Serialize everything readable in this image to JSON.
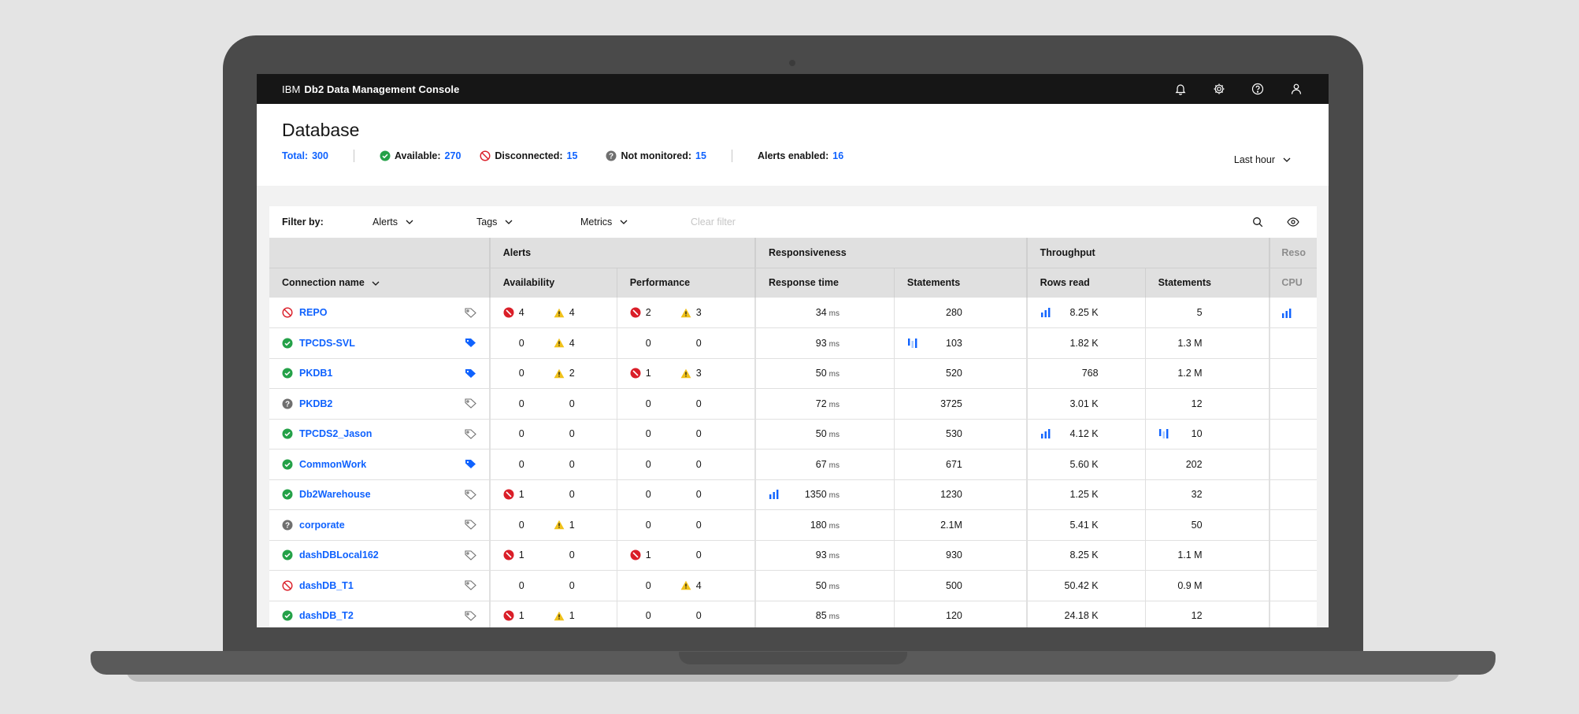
{
  "topbar": {
    "brand_prefix": "IBM",
    "brand_name": "Db2 Data Management Console",
    "icons": [
      "notification-icon",
      "settings-icon",
      "help-icon",
      "user-icon"
    ]
  },
  "header": {
    "title": "Database",
    "total_label": "Total:",
    "total": "300",
    "available_label": "Available:",
    "available": "270",
    "disconnected_label": "Disconnected:",
    "disconnected": "15",
    "not_monitored_label": "Not monitored:",
    "not_monitored": "15",
    "alerts_enabled_label": "Alerts enabled:",
    "alerts_enabled": "16",
    "time_range": "Last hour"
  },
  "filter": {
    "label": "Filter by:",
    "alerts": "Alerts",
    "tags": "Tags",
    "metrics": "Metrics",
    "clear": "Clear filter"
  },
  "table": {
    "group_headers": {
      "alerts": "Alerts",
      "responsiveness": "Responsiveness",
      "throughput": "Throughput",
      "resources": "Reso"
    },
    "columns": {
      "connection": "Connection name",
      "availability": "Availability",
      "performance": "Performance",
      "response_time": "Response time",
      "statements": "Statements",
      "rows_read": "Rows read",
      "tp_statements": "Statements",
      "cpu": "CPU"
    },
    "unit_ms": "ms",
    "colors": {
      "link": "#0f62fe",
      "critical": "#da1e28",
      "warning": "#f1c21b",
      "ok": "#24a148",
      "unknown": "#6f6f6f"
    },
    "rows": [
      {
        "status": "disconnected",
        "name": "REPO",
        "tagged": false,
        "av_crit": "4",
        "av_warn": "4",
        "pf_crit": "2",
        "pf_warn": "3",
        "resp": "34",
        "stmts": "280",
        "rows": "8.25 K",
        "tp": "5",
        "rt_spark": false,
        "st_spark": false,
        "rr_spark": true,
        "tp_spark": false,
        "cpu_spark": true,
        "avc_icon": true,
        "avw_icon": true,
        "pfc_icon": true,
        "pfw_icon": true
      },
      {
        "status": "available",
        "name": "TPCDS-SVL",
        "tagged": true,
        "av_crit": "0",
        "av_warn": "4",
        "pf_crit": "0",
        "pf_warn": "0",
        "resp": "93",
        "stmts": "103",
        "rows": "1.82 K",
        "tp": "1.3 M",
        "rt_spark": false,
        "st_spark": true,
        "rr_spark": false,
        "tp_spark": false,
        "cpu_spark": false,
        "avc_icon": false,
        "avw_icon": true,
        "pfc_icon": false,
        "pfw_icon": false
      },
      {
        "status": "available",
        "name": "PKDB1",
        "tagged": true,
        "av_crit": "0",
        "av_warn": "2",
        "pf_crit": "1",
        "pf_warn": "3",
        "resp": "50",
        "stmts": "520",
        "rows": "768",
        "tp": "1.2 M",
        "rt_spark": false,
        "st_spark": false,
        "rr_spark": false,
        "tp_spark": false,
        "cpu_spark": false,
        "avc_icon": false,
        "avw_icon": true,
        "pfc_icon": true,
        "pfw_icon": true
      },
      {
        "status": "not-monitored",
        "name": "PKDB2",
        "tagged": false,
        "av_crit": "0",
        "av_warn": "0",
        "pf_crit": "0",
        "pf_warn": "0",
        "resp": "72",
        "stmts": "3725",
        "rows": "3.01 K",
        "tp": "12",
        "rt_spark": false,
        "st_spark": false,
        "rr_spark": false,
        "tp_spark": false,
        "cpu_spark": false,
        "avc_icon": false,
        "avw_icon": false,
        "pfc_icon": false,
        "pfw_icon": false
      },
      {
        "status": "available",
        "name": "TPCDS2_Jason",
        "tagged": false,
        "av_crit": "0",
        "av_warn": "0",
        "pf_crit": "0",
        "pf_warn": "0",
        "resp": "50",
        "stmts": "530",
        "rows": "4.12 K",
        "tp": "10",
        "rt_spark": false,
        "st_spark": false,
        "rr_spark": true,
        "tp_spark": true,
        "cpu_spark": false,
        "avc_icon": false,
        "avw_icon": false,
        "pfc_icon": false,
        "pfw_icon": false
      },
      {
        "status": "available",
        "name": "CommonWork",
        "tagged": true,
        "av_crit": "0",
        "av_warn": "0",
        "pf_crit": "0",
        "pf_warn": "0",
        "resp": "67",
        "stmts": "671",
        "rows": "5.60 K",
        "tp": "202",
        "rt_spark": false,
        "st_spark": false,
        "rr_spark": false,
        "tp_spark": false,
        "cpu_spark": false,
        "avc_icon": false,
        "avw_icon": false,
        "pfc_icon": false,
        "pfw_icon": false
      },
      {
        "status": "available",
        "name": "Db2Warehouse",
        "tagged": false,
        "av_crit": "1",
        "av_warn": "0",
        "pf_crit": "0",
        "pf_warn": "0",
        "resp": "1350",
        "stmts": "1230",
        "rows": "1.25 K",
        "tp": "32",
        "rt_spark": true,
        "st_spark": false,
        "rr_spark": false,
        "tp_spark": false,
        "cpu_spark": false,
        "avc_icon": true,
        "avw_icon": false,
        "pfc_icon": false,
        "pfw_icon": false
      },
      {
        "status": "not-monitored",
        "name": "corporate",
        "tagged": false,
        "av_crit": "0",
        "av_warn": "1",
        "pf_crit": "0",
        "pf_warn": "0",
        "resp": "180",
        "stmts": "2.1M",
        "rows": "5.41 K",
        "tp": "50",
        "rt_spark": false,
        "st_spark": false,
        "rr_spark": false,
        "tp_spark": false,
        "cpu_spark": false,
        "avc_icon": false,
        "avw_icon": true,
        "pfc_icon": false,
        "pfw_icon": false
      },
      {
        "status": "available",
        "name": "dashDBLocal162",
        "tagged": false,
        "av_crit": "1",
        "av_warn": "0",
        "pf_crit": "1",
        "pf_warn": "0",
        "resp": "93",
        "stmts": "930",
        "rows": "8.25 K",
        "tp": "1.1 M",
        "rt_spark": false,
        "st_spark": false,
        "rr_spark": false,
        "tp_spark": false,
        "cpu_spark": false,
        "avc_icon": true,
        "avw_icon": false,
        "pfc_icon": true,
        "pfw_icon": false
      },
      {
        "status": "disconnected",
        "name": "dashDB_T1",
        "tagged": false,
        "av_crit": "0",
        "av_warn": "0",
        "pf_crit": "0",
        "pf_warn": "4",
        "resp": "50",
        "stmts": "500",
        "rows": "50.42 K",
        "tp": "0.9 M",
        "rt_spark": false,
        "st_spark": false,
        "rr_spark": false,
        "tp_spark": false,
        "cpu_spark": false,
        "avc_icon": false,
        "avw_icon": false,
        "pfc_icon": false,
        "pfw_icon": true
      },
      {
        "status": "available",
        "name": "dashDB_T2",
        "tagged": false,
        "av_crit": "1",
        "av_warn": "1",
        "pf_crit": "0",
        "pf_warn": "0",
        "resp": "85",
        "stmts": "120",
        "rows": "24.18 K",
        "tp": "12",
        "rt_spark": false,
        "st_spark": false,
        "rr_spark": false,
        "tp_spark": false,
        "cpu_spark": false,
        "avc_icon": true,
        "avw_icon": true,
        "pfc_icon": false,
        "pfw_icon": false
      }
    ]
  }
}
